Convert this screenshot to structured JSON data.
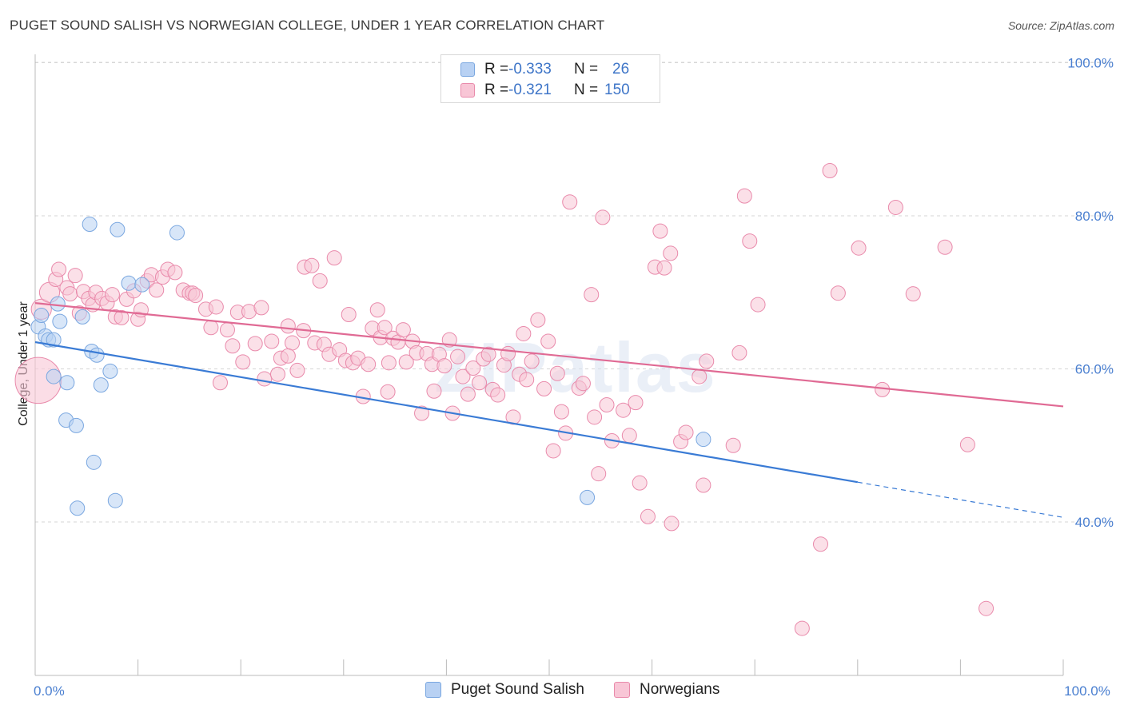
{
  "header": {
    "title": "PUGET SOUND SALISH VS NORWEGIAN COLLEGE, UNDER 1 YEAR CORRELATION CHART",
    "source": "Source: ZipAtlas.com"
  },
  "watermark": "ZIPatlas",
  "legend": {
    "rows": [
      {
        "r_label": "R =",
        "r_value": "-0.333",
        "n_label": "N =",
        "n_value": "26",
        "color": "#7aa7e0",
        "fill": "#b8d1f3"
      },
      {
        "r_label": "R =",
        "r_value": "-0.321",
        "n_label": "N =",
        "n_value": "150",
        "color": "#e98aab",
        "fill": "#f8c6d6"
      }
    ]
  },
  "bottom_legend": {
    "items": [
      {
        "label": "Puget Sound Salish",
        "color": "#7aa7e0",
        "fill": "#b8d1f3"
      },
      {
        "label": "Norwegians",
        "color": "#e98aab",
        "fill": "#f8c6d6"
      }
    ]
  },
  "chart_data": {
    "type": "scatter",
    "title": "PUGET SOUND SALISH VS NORWEGIAN COLLEGE, UNDER 1 YEAR CORRELATION CHART",
    "xlabel": "",
    "ylabel": "College, Under 1 year",
    "xlim": [
      0,
      100
    ],
    "ylim": [
      20,
      104
    ],
    "x_tick_labels": [
      "0.0%",
      "100.0%"
    ],
    "y_ticks": [
      40,
      60,
      80,
      100
    ],
    "y_tick_labels": [
      "40.0%",
      "60.0%",
      "80.0%",
      "100.0%"
    ],
    "grid": true,
    "series": [
      {
        "name": "Puget Sound Salish",
        "color": "#3a7bd5",
        "fill": "#b8d1f3",
        "stroke": "#7aa7e0",
        "trend": {
          "x": [
            0,
            80
          ],
          "y": [
            63.5,
            45.2
          ],
          "dashed_to": [
            100,
            40.6
          ]
        },
        "points": [
          {
            "x": 0.3,
            "y": 65.5
          },
          {
            "x": 0.6,
            "y": 67
          },
          {
            "x": 1.0,
            "y": 64.3
          },
          {
            "x": 1.3,
            "y": 63.8
          },
          {
            "x": 1.8,
            "y": 63.8
          },
          {
            "x": 1.8,
            "y": 59
          },
          {
            "x": 2.2,
            "y": 68.5
          },
          {
            "x": 2.4,
            "y": 66.2
          },
          {
            "x": 3.1,
            "y": 58.2
          },
          {
            "x": 3.0,
            "y": 53.3
          },
          {
            "x": 4.0,
            "y": 52.6
          },
          {
            "x": 4.1,
            "y": 41.8
          },
          {
            "x": 4.6,
            "y": 66.8
          },
          {
            "x": 5.3,
            "y": 78.9
          },
          {
            "x": 5.5,
            "y": 62.3
          },
          {
            "x": 5.7,
            "y": 47.8
          },
          {
            "x": 6.0,
            "y": 61.8
          },
          {
            "x": 6.4,
            "y": 57.9
          },
          {
            "x": 7.3,
            "y": 59.7
          },
          {
            "x": 7.8,
            "y": 42.8
          },
          {
            "x": 8.0,
            "y": 78.2
          },
          {
            "x": 9.1,
            "y": 71.2
          },
          {
            "x": 10.4,
            "y": 71
          },
          {
            "x": 13.8,
            "y": 77.8
          },
          {
            "x": 53.7,
            "y": 43.2
          },
          {
            "x": 65,
            "y": 50.8
          }
        ]
      },
      {
        "name": "Norwegians",
        "color": "#e06a94",
        "fill": "#f8c6d6",
        "stroke": "#e98aab",
        "trend": {
          "x": [
            0,
            100
          ],
          "y": [
            68.6,
            55.1
          ]
        },
        "points": [
          {
            "x": 0.3,
            "y": 58.5,
            "s": 3.2
          },
          {
            "x": 0.6,
            "y": 67.8,
            "s": 1.4
          },
          {
            "x": 1.4,
            "y": 70,
            "s": 1.4
          },
          {
            "x": 2.0,
            "y": 71.7
          },
          {
            "x": 2.3,
            "y": 73
          },
          {
            "x": 3.1,
            "y": 70.6
          },
          {
            "x": 3.4,
            "y": 69.8
          },
          {
            "x": 3.9,
            "y": 72.2
          },
          {
            "x": 4.3,
            "y": 67.3
          },
          {
            "x": 4.7,
            "y": 70.1
          },
          {
            "x": 5.2,
            "y": 69.2
          },
          {
            "x": 5.6,
            "y": 68.4
          },
          {
            "x": 5.9,
            "y": 70
          },
          {
            "x": 6.5,
            "y": 69.2
          },
          {
            "x": 7.0,
            "y": 68.6
          },
          {
            "x": 7.5,
            "y": 69.7
          },
          {
            "x": 7.8,
            "y": 66.8
          },
          {
            "x": 8.4,
            "y": 66.7
          },
          {
            "x": 8.9,
            "y": 69.1
          },
          {
            "x": 9.6,
            "y": 70.2
          },
          {
            "x": 10.0,
            "y": 66.5
          },
          {
            "x": 10.3,
            "y": 67.7
          },
          {
            "x": 10.9,
            "y": 71.5
          },
          {
            "x": 11.3,
            "y": 72.3
          },
          {
            "x": 11.8,
            "y": 70.3
          },
          {
            "x": 12.4,
            "y": 72
          },
          {
            "x": 12.9,
            "y": 73
          },
          {
            "x": 13.6,
            "y": 72.6
          },
          {
            "x": 14.4,
            "y": 70.3
          },
          {
            "x": 15.0,
            "y": 69.9
          },
          {
            "x": 15.3,
            "y": 69.9
          },
          {
            "x": 15.6,
            "y": 69.6
          },
          {
            "x": 16.6,
            "y": 67.8
          },
          {
            "x": 17.1,
            "y": 65.4
          },
          {
            "x": 17.6,
            "y": 68.1
          },
          {
            "x": 18.0,
            "y": 58.2
          },
          {
            "x": 18.7,
            "y": 65.1
          },
          {
            "x": 19.2,
            "y": 63
          },
          {
            "x": 19.7,
            "y": 67.4
          },
          {
            "x": 20.2,
            "y": 60.9
          },
          {
            "x": 20.8,
            "y": 67.5
          },
          {
            "x": 21.4,
            "y": 63.3
          },
          {
            "x": 22.0,
            "y": 68
          },
          {
            "x": 22.3,
            "y": 58.7
          },
          {
            "x": 23.0,
            "y": 63.6
          },
          {
            "x": 23.6,
            "y": 59.3
          },
          {
            "x": 23.9,
            "y": 61.4
          },
          {
            "x": 24.6,
            "y": 65.6
          },
          {
            "x": 25.0,
            "y": 63.4
          },
          {
            "x": 25.5,
            "y": 59.8
          },
          {
            "x": 26.1,
            "y": 65
          },
          {
            "x": 26.2,
            "y": 73.3
          },
          {
            "x": 26.9,
            "y": 73.5
          },
          {
            "x": 27.2,
            "y": 63.4
          },
          {
            "x": 27.7,
            "y": 71.5
          },
          {
            "x": 28.1,
            "y": 63.2
          },
          {
            "x": 28.6,
            "y": 61.9
          },
          {
            "x": 29.1,
            "y": 74.5
          },
          {
            "x": 29.6,
            "y": 62.5
          },
          {
            "x": 30.2,
            "y": 61.1
          },
          {
            "x": 30.5,
            "y": 67.1
          },
          {
            "x": 30.9,
            "y": 60.8
          },
          {
            "x": 31.4,
            "y": 61.4
          },
          {
            "x": 31.9,
            "y": 56.4
          },
          {
            "x": 32.4,
            "y": 60.6
          },
          {
            "x": 32.8,
            "y": 65.3
          },
          {
            "x": 33.3,
            "y": 67.7
          },
          {
            "x": 33.6,
            "y": 64.1
          },
          {
            "x": 34.0,
            "y": 65.4
          },
          {
            "x": 34.3,
            "y": 57
          },
          {
            "x": 34.8,
            "y": 64
          },
          {
            "x": 35.3,
            "y": 63.5
          },
          {
            "x": 35.8,
            "y": 65.1
          },
          {
            "x": 36.1,
            "y": 60.9
          },
          {
            "x": 36.7,
            "y": 63.6
          },
          {
            "x": 37.1,
            "y": 62.1
          },
          {
            "x": 37.6,
            "y": 54.2
          },
          {
            "x": 38.1,
            "y": 62
          },
          {
            "x": 38.6,
            "y": 60.6
          },
          {
            "x": 38.8,
            "y": 57.1
          },
          {
            "x": 39.3,
            "y": 61.9
          },
          {
            "x": 39.8,
            "y": 60.4
          },
          {
            "x": 40.3,
            "y": 63.8
          },
          {
            "x": 40.6,
            "y": 54.2
          },
          {
            "x": 41.1,
            "y": 61.6
          },
          {
            "x": 41.6,
            "y": 59
          },
          {
            "x": 42.1,
            "y": 56.7
          },
          {
            "x": 42.6,
            "y": 60.1
          },
          {
            "x": 43.2,
            "y": 58.2
          },
          {
            "x": 43.6,
            "y": 61.3
          },
          {
            "x": 44.1,
            "y": 61.9
          },
          {
            "x": 44.5,
            "y": 57.3
          },
          {
            "x": 45.0,
            "y": 56.6
          },
          {
            "x": 45.6,
            "y": 60.5
          },
          {
            "x": 46.0,
            "y": 62
          },
          {
            "x": 46.5,
            "y": 53.7
          },
          {
            "x": 47.1,
            "y": 59.3
          },
          {
            "x": 47.5,
            "y": 64.6
          },
          {
            "x": 47.8,
            "y": 58.6
          },
          {
            "x": 48.3,
            "y": 61
          },
          {
            "x": 48.9,
            "y": 66.4
          },
          {
            "x": 49.5,
            "y": 57.4
          },
          {
            "x": 49.9,
            "y": 63.6
          },
          {
            "x": 50.4,
            "y": 49.3
          },
          {
            "x": 50.8,
            "y": 59.4
          },
          {
            "x": 51.2,
            "y": 54.4
          },
          {
            "x": 51.6,
            "y": 51.6
          },
          {
            "x": 52.0,
            "y": 81.8
          },
          {
            "x": 52.9,
            "y": 57.5
          },
          {
            "x": 53.3,
            "y": 58.1
          },
          {
            "x": 54.1,
            "y": 69.7
          },
          {
            "x": 54.4,
            "y": 53.7
          },
          {
            "x": 54.8,
            "y": 46.3
          },
          {
            "x": 55.2,
            "y": 79.8
          },
          {
            "x": 55.6,
            "y": 55.3
          },
          {
            "x": 56.1,
            "y": 50.6
          },
          {
            "x": 57.2,
            "y": 54.6
          },
          {
            "x": 57.8,
            "y": 51.3
          },
          {
            "x": 58.4,
            "y": 55.6
          },
          {
            "x": 58.8,
            "y": 45.1
          },
          {
            "x": 59.1,
            "y": 96.5
          },
          {
            "x": 59.6,
            "y": 40.7
          },
          {
            "x": 60.3,
            "y": 73.3
          },
          {
            "x": 60.8,
            "y": 78
          },
          {
            "x": 61.2,
            "y": 73.2
          },
          {
            "x": 61.8,
            "y": 75.1
          },
          {
            "x": 61.9,
            "y": 39.8
          },
          {
            "x": 62.8,
            "y": 50.5
          },
          {
            "x": 63.3,
            "y": 51.7
          },
          {
            "x": 64.6,
            "y": 59
          },
          {
            "x": 65.0,
            "y": 44.8
          },
          {
            "x": 65.3,
            "y": 61
          },
          {
            "x": 67.9,
            "y": 50
          },
          {
            "x": 68.5,
            "y": 62.1
          },
          {
            "x": 69.0,
            "y": 82.6
          },
          {
            "x": 69.5,
            "y": 76.7
          },
          {
            "x": 70.3,
            "y": 68.4
          },
          {
            "x": 76.4,
            "y": 37.1
          },
          {
            "x": 77.3,
            "y": 85.9
          },
          {
            "x": 78.1,
            "y": 69.9
          },
          {
            "x": 80.1,
            "y": 75.8
          },
          {
            "x": 82.4,
            "y": 57.3
          },
          {
            "x": 83.7,
            "y": 81.1
          },
          {
            "x": 85.4,
            "y": 69.8
          },
          {
            "x": 88.5,
            "y": 75.9
          },
          {
            "x": 90.7,
            "y": 50.1
          },
          {
            "x": 92.5,
            "y": 28.7
          },
          {
            "x": 74.6,
            "y": 26.1
          },
          {
            "x": 24.6,
            "y": 61.7
          },
          {
            "x": 34.4,
            "y": 60.8
          }
        ]
      }
    ]
  }
}
